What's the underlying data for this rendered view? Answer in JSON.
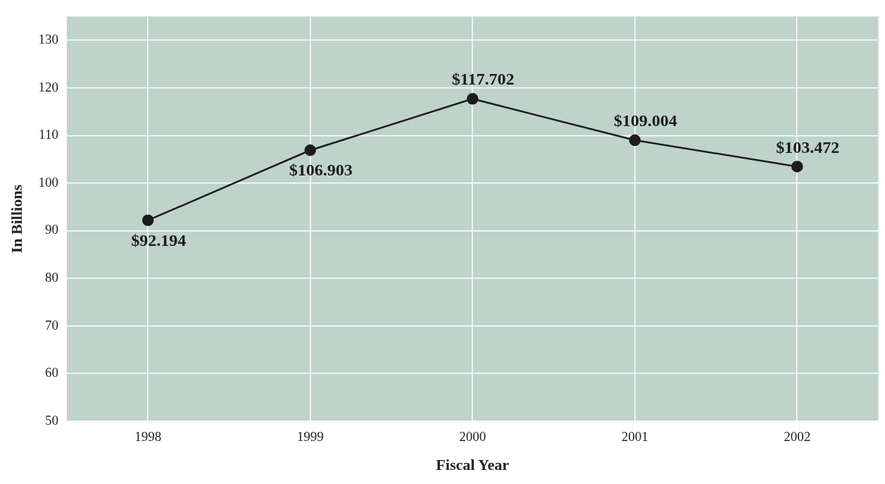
{
  "chart_data": {
    "type": "line",
    "xlabel": "Fiscal Year",
    "ylabel": "In Billions",
    "categories": [
      "1998",
      "1999",
      "2000",
      "2001",
      "2002"
    ],
    "series": [
      {
        "color": "#1c1c1c",
        "values": [
          92.194,
          106.903,
          117.702,
          109.004,
          103.472
        ],
        "value_labels": [
          "$92.194",
          "$106.903",
          "$117.702",
          "$109.004",
          "$103.472"
        ]
      }
    ],
    "ylim": [
      50,
      135
    ],
    "yticks": [
      50,
      60,
      70,
      80,
      90,
      100,
      110,
      120,
      130
    ],
    "grid": true,
    "legend": false,
    "marker": "circle",
    "line_style": "solid"
  }
}
